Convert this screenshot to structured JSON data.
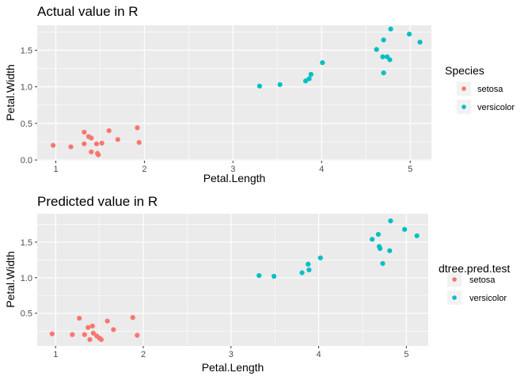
{
  "chart_data": [
    {
      "type": "scatter",
      "title": "Actual value in R",
      "xlabel": "Petal.Length",
      "ylabel": "Petal.Width",
      "xlim": [
        0.79,
        5.24
      ],
      "ylim": [
        -0.01,
        1.84
      ],
      "xticks": [
        1,
        2,
        3,
        4,
        5
      ],
      "yticks": [
        0.0,
        0.5,
        1.0,
        1.5
      ],
      "ytick_labels": [
        "0.0",
        "0.5",
        "1.0",
        "1.5"
      ],
      "grid": true,
      "legend": {
        "title": "Species",
        "placement": "right",
        "entries": [
          {
            "label": "setosa",
            "color": "#F8766D"
          },
          {
            "label": "versicolor",
            "color": "#00BFC4"
          }
        ]
      },
      "series": [
        {
          "name": "setosa",
          "color": "#F8766D",
          "points": [
            [
              0.97,
              0.2
            ],
            [
              1.17,
              0.18
            ],
            [
              1.32,
              0.38
            ],
            [
              1.32,
              0.22
            ],
            [
              1.37,
              0.32
            ],
            [
              1.4,
              0.3
            ],
            [
              1.4,
              0.11
            ],
            [
              1.46,
              0.22
            ],
            [
              1.47,
              0.09
            ],
            [
              1.48,
              0.07
            ],
            [
              1.52,
              0.23
            ],
            [
              1.6,
              0.4
            ],
            [
              1.7,
              0.28
            ],
            [
              1.92,
              0.44
            ],
            [
              1.94,
              0.24
            ]
          ]
        },
        {
          "name": "versicolor",
          "color": "#00BFC4",
          "points": [
            [
              3.3,
              1.01
            ],
            [
              3.53,
              1.03
            ],
            [
              3.82,
              1.08
            ],
            [
              3.86,
              1.11
            ],
            [
              3.88,
              1.17
            ],
            [
              4.01,
              1.33
            ],
            [
              4.62,
              1.51
            ],
            [
              4.69,
              1.41
            ],
            [
              4.7,
              1.19
            ],
            [
              4.7,
              1.64
            ],
            [
              4.74,
              1.41
            ],
            [
              4.77,
              1.37
            ],
            [
              4.78,
              1.79
            ],
            [
              4.99,
              1.72
            ],
            [
              5.11,
              1.61
            ]
          ]
        }
      ]
    },
    {
      "type": "scatter",
      "title": "Predicted value in R",
      "xlabel": "Petal.Length",
      "ylabel": "Petal.Width",
      "xlim": [
        0.79,
        5.25
      ],
      "ylim": [
        0.04,
        1.9
      ],
      "xticks": [
        1,
        2,
        3,
        4,
        5
      ],
      "yticks": [
        0.5,
        1.0,
        1.5
      ],
      "ytick_labels": [
        "0.5",
        "1.0",
        "1.5"
      ],
      "grid": true,
      "legend": {
        "title": "dtree.pred.test",
        "placement": "right",
        "entries": [
          {
            "label": "setosa",
            "color": "#F8766D"
          },
          {
            "label": "versicolor",
            "color": "#00BFC4"
          }
        ]
      },
      "series": [
        {
          "name": "setosa",
          "color": "#F8766D",
          "points": [
            [
              0.96,
              0.21
            ],
            [
              1.19,
              0.2
            ],
            [
              1.27,
              0.43
            ],
            [
              1.33,
              0.2
            ],
            [
              1.37,
              0.3
            ],
            [
              1.39,
              0.13
            ],
            [
              1.42,
              0.32
            ],
            [
              1.43,
              0.22
            ],
            [
              1.47,
              0.18
            ],
            [
              1.5,
              0.15
            ],
            [
              1.52,
              0.13
            ],
            [
              1.59,
              0.39
            ],
            [
              1.66,
              0.27
            ],
            [
              1.88,
              0.44
            ],
            [
              1.93,
              0.19
            ]
          ]
        },
        {
          "name": "versicolor",
          "color": "#00BFC4",
          "points": [
            [
              3.32,
              1.03
            ],
            [
              3.49,
              1.02
            ],
            [
              3.81,
              1.07
            ],
            [
              3.88,
              1.19
            ],
            [
              3.89,
              1.11
            ],
            [
              4.02,
              1.28
            ],
            [
              4.61,
              1.54
            ],
            [
              4.68,
              1.61
            ],
            [
              4.69,
              1.44
            ],
            [
              4.7,
              1.41
            ],
            [
              4.73,
              1.2
            ],
            [
              4.81,
              1.38
            ],
            [
              4.82,
              1.8
            ],
            [
              4.98,
              1.68
            ],
            [
              5.12,
              1.59
            ]
          ]
        }
      ]
    }
  ]
}
